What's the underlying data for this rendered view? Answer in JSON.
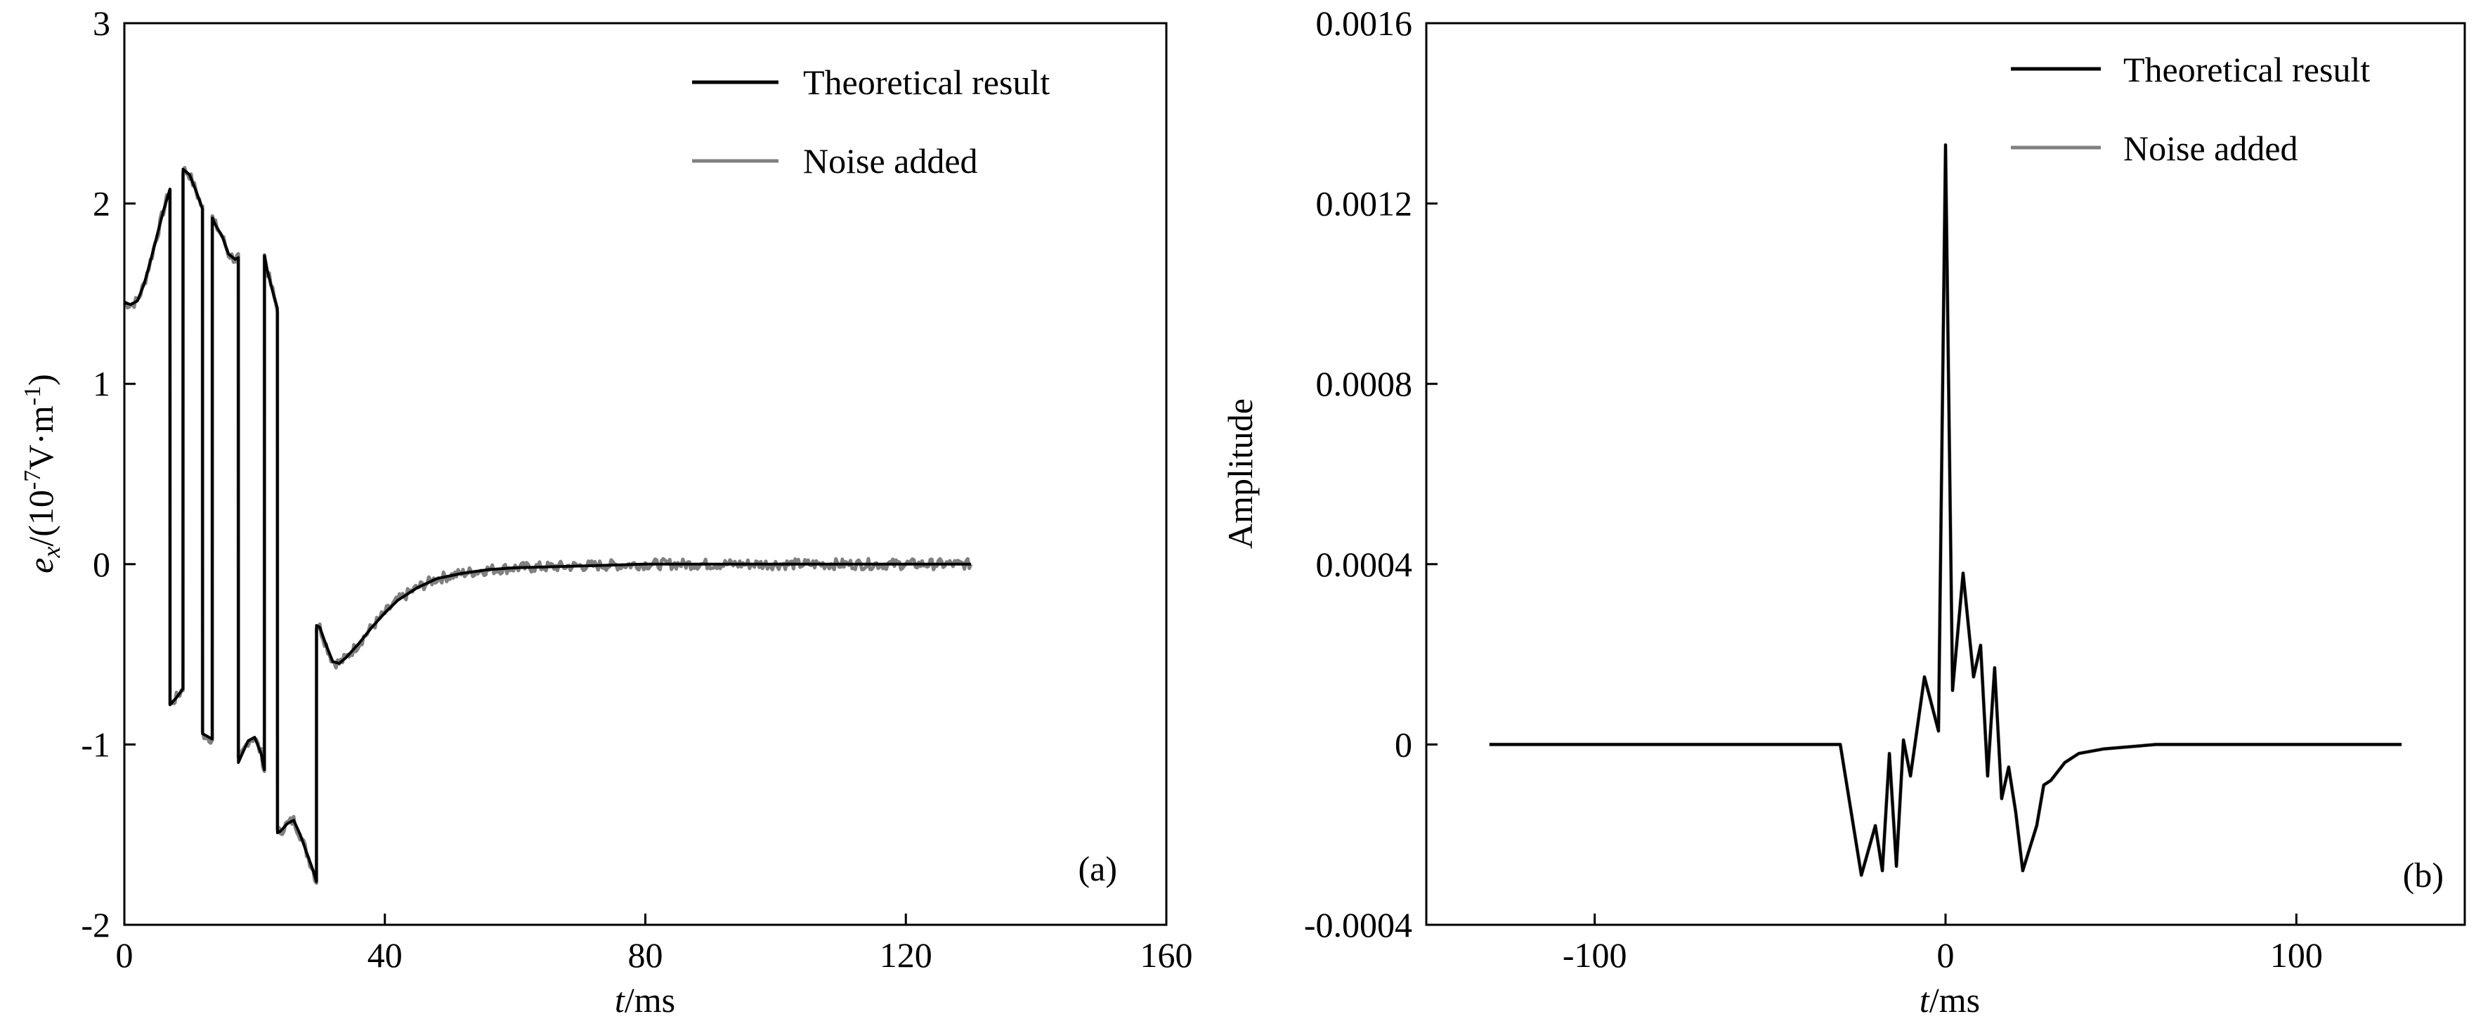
{
  "chart_data": [
    {
      "type": "line",
      "panel_label": "(a)",
      "xlabel": {
        "italic": "t",
        "rest": "/ms"
      },
      "ylabel": {
        "italic": "e",
        "sub": "x",
        "pre": "/(10",
        "sup1": "-7",
        "mid": "V·m",
        "sup2": "-1",
        "post": ")"
      },
      "xlim": [
        0,
        160
      ],
      "ylim": [
        -2,
        3
      ],
      "xticks": [
        0,
        40,
        80,
        120,
        160
      ],
      "yticks": [
        -2,
        -1,
        0,
        1,
        2,
        3
      ],
      "legend_position": "top-right",
      "series": [
        {
          "name": "Theoretical result",
          "color": "#000000",
          "style": "solid",
          "points": [
            [
              0,
              1.45
            ],
            [
              1,
              1.44
            ],
            [
              2,
              1.46
            ],
            [
              3,
              1.55
            ],
            [
              4,
              1.68
            ],
            [
              5,
              1.82
            ],
            [
              6,
              1.96
            ],
            [
              7,
              2.08
            ],
            [
              7.01,
              -0.78
            ],
            [
              8,
              -0.74
            ],
            [
              9,
              -0.69
            ],
            [
              9.01,
              2.19
            ],
            [
              10,
              2.16
            ],
            [
              11,
              2.07
            ],
            [
              12,
              1.97
            ],
            [
              12.01,
              -0.94
            ],
            [
              13,
              -0.96
            ],
            [
              13.5,
              -0.97
            ],
            [
              13.51,
              1.92
            ],
            [
              14,
              1.88
            ],
            [
              15,
              1.82
            ],
            [
              16,
              1.72
            ],
            [
              17,
              1.69
            ],
            [
              17.5,
              1.7
            ],
            [
              17.51,
              -1.1
            ],
            [
              18,
              -1.06
            ],
            [
              19,
              -0.98
            ],
            [
              20,
              -0.96
            ],
            [
              21,
              -1.05
            ],
            [
              21.5,
              -1.14
            ],
            [
              21.51,
              1.71
            ],
            [
              22,
              1.62
            ],
            [
              23,
              1.48
            ],
            [
              23.5,
              1.42
            ],
            [
              23.51,
              -1.49
            ],
            [
              24,
              -1.48
            ],
            [
              25,
              -1.44
            ],
            [
              26,
              -1.42
            ],
            [
              27,
              -1.5
            ],
            [
              28,
              -1.6
            ],
            [
              29,
              -1.7
            ],
            [
              29.5,
              -1.76
            ],
            [
              29.51,
              -0.34
            ],
            [
              30,
              -0.35
            ],
            [
              31,
              -0.45
            ],
            [
              32,
              -0.54
            ],
            [
              33,
              -0.55
            ],
            [
              34,
              -0.52
            ],
            [
              36,
              -0.44
            ],
            [
              38,
              -0.35
            ],
            [
              40,
              -0.27
            ],
            [
              42,
              -0.2
            ],
            [
              45,
              -0.13
            ],
            [
              48,
              -0.08
            ],
            [
              52,
              -0.05
            ],
            [
              56,
              -0.03
            ],
            [
              60,
              -0.02
            ],
            [
              70,
              -0.01
            ],
            [
              80,
              0.0
            ],
            [
              100,
              0.0
            ],
            [
              130,
              0.0
            ]
          ]
        },
        {
          "name": "Noise added",
          "color": "#808080",
          "style": "solid",
          "noise_amplitude": 0.03
        }
      ]
    },
    {
      "type": "line",
      "panel_label": "(b)",
      "xlabel": {
        "italic": "t",
        "rest": "/ms"
      },
      "ylabel": "Amplitude",
      "xlim": [
        -148,
        148
      ],
      "ylim": [
        -0.0004,
        0.0016
      ],
      "xticks": [
        -100,
        0,
        100
      ],
      "xtick_labels": [
        "-100",
        "0",
        "100"
      ],
      "yticks": [
        -0.0004,
        0,
        0.0004,
        0.0008,
        0.0012,
        0.0016
      ],
      "ytick_labels": [
        "-0.0004",
        "0",
        "0.0004",
        "0.0008",
        "0.0012",
        "0.0016"
      ],
      "legend_position": "top-right",
      "series": [
        {
          "name": "Theoretical result",
          "color": "#000000",
          "style": "solid",
          "points": [
            [
              -130,
              0
            ],
            [
              -30,
              0
            ],
            [
              -24,
              -0.00029
            ],
            [
              -20,
              -0.00018
            ],
            [
              -18,
              -0.00028
            ],
            [
              -16,
              -2e-05
            ],
            [
              -14,
              -0.00027
            ],
            [
              -12,
              1e-05
            ],
            [
              -10,
              -7e-05
            ],
            [
              -6,
              0.00015
            ],
            [
              -2,
              3e-05
            ],
            [
              0,
              0.00133
            ],
            [
              2,
              0.00012
            ],
            [
              5,
              0.00038
            ],
            [
              8,
              0.00015
            ],
            [
              10,
              0.00022
            ],
            [
              12,
              -7e-05
            ],
            [
              14,
              0.00017
            ],
            [
              16,
              -0.00012
            ],
            [
              18,
              -5e-05
            ],
            [
              20,
              -0.00015
            ],
            [
              22,
              -0.00028
            ],
            [
              26,
              -0.00018
            ],
            [
              28,
              -9e-05
            ],
            [
              30,
              -8e-05
            ],
            [
              34,
              -4e-05
            ],
            [
              38,
              -2e-05
            ],
            [
              45,
              -1e-05
            ],
            [
              60,
              0
            ],
            [
              130,
              0
            ]
          ]
        },
        {
          "name": "Noise added",
          "color": "#808080",
          "style": "solid"
        }
      ]
    }
  ]
}
